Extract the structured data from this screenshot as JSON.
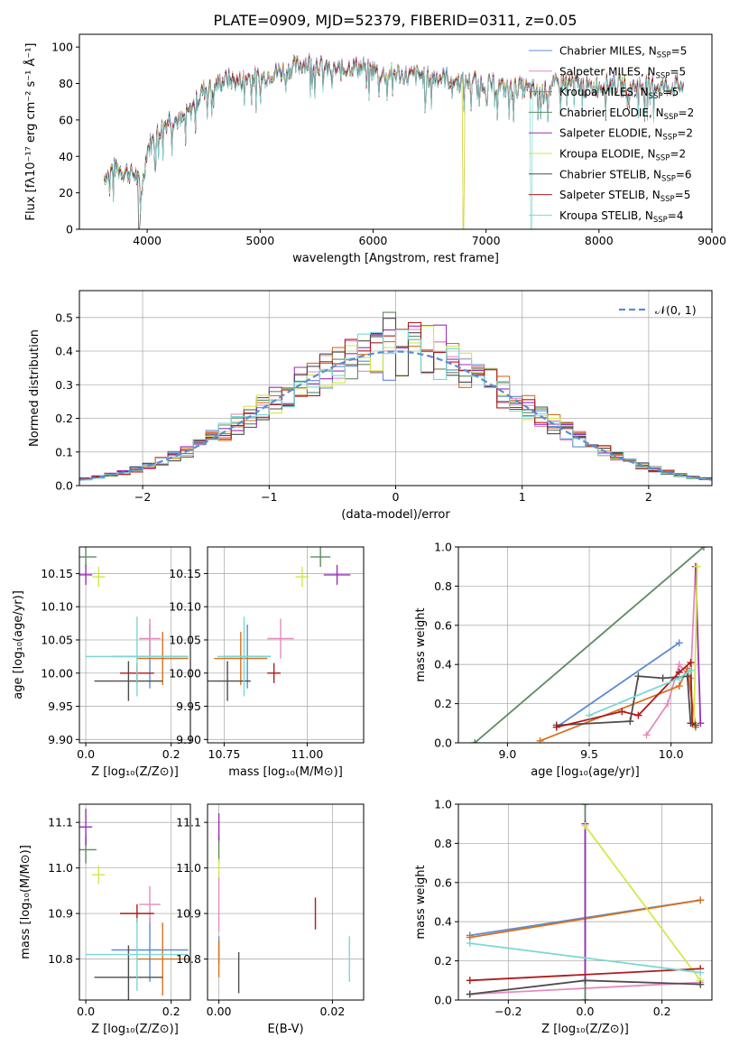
{
  "colors": {
    "Chabrier MILES": "#5b8bd4",
    "Salpeter MILES": "#e38bbf",
    "Kroupa MILES": "#d5721f",
    "Chabrier ELODIE": "#5b8a62",
    "Salpeter ELODIE": "#9a2fb6",
    "Kroupa ELODIE": "#d5e64e",
    "Chabrier STELIB": "#4d4d4d",
    "Salpeter STELIB": "#b01a1a",
    "Kroupa STELIB": "#7dd6d6",
    "normal": "#5b8bd4",
    "grid": "#b0b0b0"
  },
  "chart_data": [
    {
      "id": "spectrum",
      "type": "line",
      "title": "PLATE=0909, MJD=52379, FIBERID=0311, z=0.05",
      "xlabel": "wavelength [Angstrom, rest frame]",
      "ylabel": "Flux [fλ10⁻¹⁷ erg cm⁻² s⁻¹ Å⁻¹]",
      "xlim": [
        3400,
        9000
      ],
      "ylim": [
        0,
        107
      ],
      "xticks": [
        4000,
        5000,
        6000,
        7000,
        8000,
        9000
      ],
      "yticks": [
        0,
        20,
        40,
        60,
        80,
        100
      ],
      "grid": false,
      "legend": "top-right",
      "continuum_x": [
        3620,
        3700,
        3800,
        3900,
        3950,
        4000,
        4100,
        4200,
        4300,
        4400,
        4500,
        4600,
        4700,
        4800,
        4900,
        5000,
        5100,
        5200,
        5300,
        5400,
        5500,
        5600,
        5700,
        5800,
        5900,
        6000,
        6100,
        6200,
        6300,
        6400,
        6500,
        6600,
        6700,
        6800,
        6900,
        7000,
        7100,
        7200,
        7300,
        7400,
        7500,
        7600,
        7700,
        7800,
        7900,
        8000,
        8100,
        8200,
        8300,
        8400,
        8500,
        8600,
        8750
      ],
      "continuum_y": [
        30,
        35,
        33,
        31,
        22,
        45,
        55,
        62,
        60,
        68,
        78,
        80,
        84,
        82,
        85,
        84,
        87,
        88,
        90,
        93,
        92,
        89,
        88,
        91,
        90,
        88,
        86,
        87,
        85,
        86,
        84,
        85,
        83,
        82,
        83,
        81,
        80,
        78,
        79,
        77,
        76,
        80,
        82,
        81,
        79,
        80,
        81,
        80,
        79,
        81,
        80,
        79,
        80
      ],
      "dips": [
        {
          "series": 6,
          "x": 3930,
          "y": 0
        },
        {
          "series": 2,
          "x": 6800,
          "y": 0
        },
        {
          "series": 5,
          "x": 6800,
          "y": 0
        },
        {
          "series": 8,
          "x": 7400,
          "y": 0
        }
      ],
      "series": [
        {
          "name": "Chabrier MILES",
          "nssp": "5"
        },
        {
          "name": "Salpeter MILES",
          "nssp": "5"
        },
        {
          "name": "Kroupa MILES",
          "nssp": "5"
        },
        {
          "name": "Chabrier ELODIE",
          "nssp": "2"
        },
        {
          "name": "Salpeter ELODIE",
          "nssp": "2"
        },
        {
          "name": "Kroupa ELODIE",
          "nssp": "2"
        },
        {
          "name": "Chabrier STELIB",
          "nssp": "6"
        },
        {
          "name": "Salpeter STELIB",
          "nssp": "5"
        },
        {
          "name": "Kroupa STELIB",
          "nssp": "4"
        }
      ]
    },
    {
      "id": "residuals",
      "type": "line",
      "xlabel": "(data-model)/error",
      "ylabel": "Normed distribution",
      "xlim": [
        -2.5,
        2.5
      ],
      "ylim": [
        0,
        0.58
      ],
      "xticks": [
        -2,
        -1,
        0,
        1,
        2
      ],
      "yticks": [
        0.0,
        0.1,
        0.2,
        0.3,
        0.4,
        0.5
      ],
      "grid": true,
      "legend": "top-right",
      "legend_label": "𝒩(0, 1)",
      "bin_width": 0.1
    },
    {
      "id": "age_vs_Z",
      "type": "scatter",
      "xlabel": "Z [log₁₀(Z/Z⊙)]",
      "ylabel": "age  [log₁₀(age/yr)]",
      "xlim": [
        -0.015,
        0.245
      ],
      "ylim": [
        9.895,
        10.19
      ],
      "xticks": [
        0.0,
        0.2
      ],
      "yticks": [
        9.9,
        9.95,
        10.0,
        10.05,
        10.1,
        10.15
      ],
      "grid": true
    },
    {
      "id": "age_vs_mass",
      "type": "scatter",
      "xlabel": "mass [log₁₀(M/M⊙)]",
      "ylabel": "",
      "xlim": [
        10.7,
        11.17
      ],
      "ylim": [
        9.895,
        10.19
      ],
      "xticks": [
        10.75,
        11.0
      ],
      "yticks": [
        9.9,
        9.95,
        10.0,
        10.05,
        10.1,
        10.15
      ],
      "grid": true
    },
    {
      "id": "mass_vs_Z",
      "type": "scatter",
      "xlabel": "Z [log₁₀(Z/Z⊙)]",
      "ylabel": "mass [log₁₀(M/M⊙)]",
      "xlim": [
        -0.015,
        0.245
      ],
      "ylim": [
        10.71,
        11.14
      ],
      "xticks": [
        0.0,
        0.2
      ],
      "yticks": [
        10.8,
        10.9,
        11.0,
        11.1
      ],
      "grid": true
    },
    {
      "id": "mass_vs_ebv",
      "type": "scatter",
      "xlabel": "E(B-V)",
      "ylabel": "",
      "xlim": [
        -0.002,
        0.0255
      ],
      "ylim": [
        10.71,
        11.14
      ],
      "xticks": [
        0.0,
        0.02
      ],
      "yticks": [
        10.8,
        10.9,
        11.0,
        11.1
      ],
      "grid": true
    },
    {
      "id": "weight_vs_age",
      "type": "line",
      "xlabel": "age  [log₁₀(age/yr)]",
      "ylabel": "mass weight",
      "xlim": [
        8.7,
        10.25
      ],
      "ylim": [
        0,
        1.0
      ],
      "xticks": [
        9.0,
        9.5,
        10.0
      ],
      "yticks": [
        0.0,
        0.2,
        0.4,
        0.6,
        0.8,
        1.0
      ],
      "grid": true
    },
    {
      "id": "weight_vs_Z",
      "type": "line",
      "xlabel": "Z [log₁₀(Z/Z⊙)]",
      "ylabel": "mass weight",
      "xlim": [
        -0.33,
        0.33
      ],
      "ylim": [
        0,
        1.0
      ],
      "xticks": [
        -0.2,
        0.0,
        0.2
      ],
      "yticks": [
        0.0,
        0.2,
        0.4,
        0.6,
        0.8,
        1.0
      ],
      "grid": true
    }
  ],
  "fits": [
    {
      "name": "Chabrier MILES",
      "age": 10.025,
      "age_err": [
        0.048,
        0.048
      ],
      "Z": 0.15,
      "Z_err": [
        0.09,
        0.09
      ],
      "mass": 10.82,
      "mass_err": [
        0.07,
        0.07
      ],
      "ebv": 0.0,
      "ebv_err": [
        0,
        0
      ],
      "mass_u": 10.82,
      "mass_u_err": [
        0.03,
        0.03
      ],
      "ages": [
        9.3,
        10.05
      ],
      "wa": [
        0.08,
        0.51
      ],
      "Zs": [
        -0.3,
        0.3
      ],
      "wz": [
        0.33,
        0.51
      ]
    },
    {
      "name": "Salpeter MILES",
      "age": 10.052,
      "age_err": [
        0.03,
        0.03
      ],
      "Z": 0.15,
      "Z_err": [
        0.025,
        0.025
      ],
      "mass": 10.92,
      "mass_err": [
        0.04,
        0.04
      ],
      "ebv": 0.0,
      "ebv_err": [
        0,
        0
      ],
      "mass_u": 10.92,
      "mass_u_err": [
        0.06,
        0.06
      ],
      "ages": [
        9.85,
        9.98,
        10.05,
        10.12,
        10.15
      ],
      "wa": [
        0.04,
        0.2,
        0.4,
        0.33,
        0.9
      ],
      "Zs": [
        -0.3,
        0.3
      ],
      "wz": [
        0.03,
        0.09
      ]
    },
    {
      "name": "Kroupa MILES",
      "age": 10.022,
      "age_err": [
        0.04,
        0.04
      ],
      "Z": 0.18,
      "Z_err": [
        0.06,
        0.06
      ],
      "mass": 10.8,
      "mass_err": [
        0.08,
        0.08
      ],
      "ebv": 0.0,
      "ebv_err": [
        0,
        0
      ],
      "mass_u": 10.8,
      "mass_u_err": [
        0.04,
        0.04
      ],
      "ages": [
        9.2,
        10.05,
        10.1,
        10.15
      ],
      "wa": [
        0.01,
        0.29,
        0.38,
        0.08
      ],
      "Zs": [
        -0.3,
        0.3
      ],
      "wz": [
        0.32,
        0.51
      ]
    },
    {
      "name": "Chabrier ELODIE",
      "age": 10.175,
      "age_err": [
        0.015,
        0.015
      ],
      "Z": 0.0,
      "Z_err": [
        0.025,
        0.025
      ],
      "mass": 11.04,
      "mass_err": [
        0.03,
        0.03
      ],
      "ebv": 0.0,
      "ebv_err": [
        0,
        0
      ],
      "mass_u": 11.04,
      "mass_u_err": [
        0.03,
        0.03
      ],
      "ages": [
        8.8,
        10.2
      ],
      "wa": [
        0.0,
        1.0
      ],
      "Zs": [
        0.0,
        0.0
      ],
      "wz": [
        0.0,
        1.0
      ]
    },
    {
      "name": "Salpeter ELODIE",
      "age": 10.148,
      "age_err": [
        0.015,
        0.015
      ],
      "Z": 0.0,
      "Z_err": [
        0.015,
        0.015
      ],
      "mass": 11.09,
      "mass_err": [
        0.04,
        0.04
      ],
      "ebv": 0.0,
      "ebv_err": [
        0,
        0
      ],
      "mass_u": 11.09,
      "mass_u_err": [
        0.03,
        0.03
      ],
      "ages": [
        10.15,
        10.18
      ],
      "wa": [
        0.9,
        0.1
      ],
      "Zs": [
        0.0,
        0.0
      ],
      "wz": [
        0.9,
        0.1
      ]
    },
    {
      "name": "Kroupa ELODIE",
      "age": 10.145,
      "age_err": [
        0.015,
        0.015
      ],
      "Z": 0.03,
      "Z_err": [
        0.015,
        0.015
      ],
      "mass": 10.985,
      "mass_err": [
        0.02,
        0.02
      ],
      "ebv": 0.0,
      "ebv_err": [
        0,
        0
      ],
      "mass_u": 11.0,
      "mass_u_err": [
        0.02,
        0.02
      ],
      "ages": [
        10.14,
        10.16
      ],
      "wa": [
        0.1,
        0.9
      ],
      "Zs": [
        0.0,
        0.3
      ],
      "wz": [
        0.89,
        0.1
      ]
    },
    {
      "name": "Chabrier STELIB",
      "age": 9.988,
      "age_err": [
        0.03,
        0.03
      ],
      "Z": 0.1,
      "Z_err": [
        0.08,
        0.08
      ],
      "mass": 10.76,
      "mass_err": [
        0.07,
        0.07
      ],
      "ebv": 0.0035,
      "ebv_err": [
        0,
        0
      ],
      "mass_u": 10.77,
      "mass_u_err": [
        0.045,
        0.045
      ],
      "ages": [
        9.3,
        9.75,
        9.8,
        9.95,
        10.1,
        10.12,
        10.15
      ],
      "wa": [
        0.09,
        0.11,
        0.34,
        0.33,
        0.34,
        0.1,
        0.09
      ],
      "Zs": [
        -0.3,
        0.0,
        0.3
      ],
      "wz": [
        0.03,
        0.1,
        0.08
      ]
    },
    {
      "name": "Salpeter STELIB",
      "age": 10.0,
      "age_err": [
        0.015,
        0.015
      ],
      "Z": 0.12,
      "Z_err": [
        0.04,
        0.04
      ],
      "mass": 10.9,
      "mass_err": [
        0.02,
        0.02
      ],
      "ebv": 0.017,
      "ebv_err": [
        0,
        0
      ],
      "mass_u": 10.9,
      "mass_u_err": [
        0.035,
        0.035
      ],
      "ages": [
        9.3,
        9.7,
        9.8,
        10.05,
        10.12,
        10.13
      ],
      "wa": [
        0.08,
        0.16,
        0.14,
        0.36,
        0.41,
        0.1
      ],
      "Zs": [
        -0.3,
        0.3
      ],
      "wz": [
        0.1,
        0.16
      ]
    },
    {
      "name": "Kroupa STELIB",
      "age": 10.025,
      "age_err": [
        0.06,
        0.06
      ],
      "Z": 0.12,
      "Z_err": [
        0.12,
        0.12
      ],
      "mass": 10.81,
      "mass_err": [
        0.08,
        0.08
      ],
      "ebv": 0.023,
      "ebv_err": [
        0,
        0
      ],
      "mass_u": 10.8,
      "mass_u_err": [
        0.05,
        0.05
      ],
      "ages": [
        9.5,
        10.05,
        10.12
      ],
      "wa": [
        0.14,
        0.33,
        0.37
      ],
      "Zs": [
        -0.3,
        0.3
      ],
      "wz": [
        0.29,
        0.14
      ]
    }
  ]
}
